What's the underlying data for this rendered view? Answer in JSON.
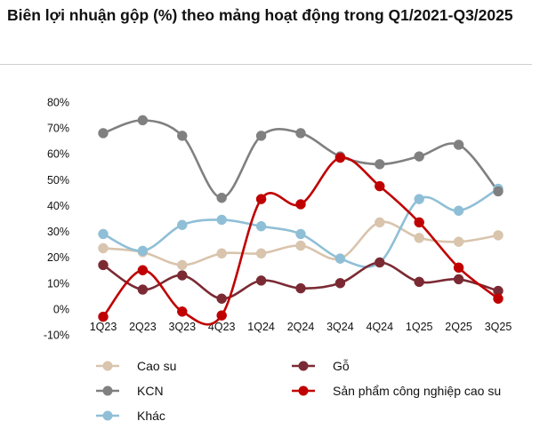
{
  "chart_data": {
    "type": "line",
    "title": "Biên lợi nhuận gộp (%) theo mảng hoạt động trong Q1/2021-Q3/2025",
    "xlabel": "",
    "ylabel": "",
    "categories": [
      "1Q23",
      "2Q23",
      "3Q23",
      "4Q23",
      "1Q24",
      "2Q24",
      "3Q24",
      "4Q24",
      "1Q25",
      "2Q25",
      "3Q25"
    ],
    "y_ticks": [
      "80%",
      "70%",
      "60%",
      "50%",
      "40%",
      "30%",
      "20%",
      "10%",
      "0%",
      "-10%"
    ],
    "ylim": [
      -10,
      80
    ],
    "grid": false,
    "smooth": true,
    "legend_position": "bottom",
    "series": [
      {
        "name": "Cao su",
        "color": "#d9c4ad",
        "values": [
          23.5,
          22,
          17,
          21.5,
          21.5,
          24.5,
          19.5,
          33.5,
          27.5,
          26,
          28.5
        ]
      },
      {
        "name": "Gỗ",
        "color": "#7b2a33",
        "values": [
          17,
          7.5,
          13,
          4,
          11,
          8,
          10,
          18,
          10.5,
          11.5,
          7
        ]
      },
      {
        "name": "KCN",
        "color": "#808080",
        "values": [
          68,
          73,
          67,
          43,
          67,
          68,
          59,
          56,
          59,
          63.5,
          45.5
        ]
      },
      {
        "name": "Sản phẩm công nghiệp cao su",
        "color": "#c00000",
        "values": [
          -3,
          15,
          -1,
          -2.5,
          42.5,
          40.5,
          58.5,
          47.5,
          33.5,
          16,
          4
        ]
      },
      {
        "name": "Khác",
        "color": "#8fbfd6",
        "values": [
          29,
          22.5,
          32.5,
          34.5,
          32,
          29,
          19.5,
          18,
          42.5,
          38,
          46.5
        ]
      }
    ]
  }
}
